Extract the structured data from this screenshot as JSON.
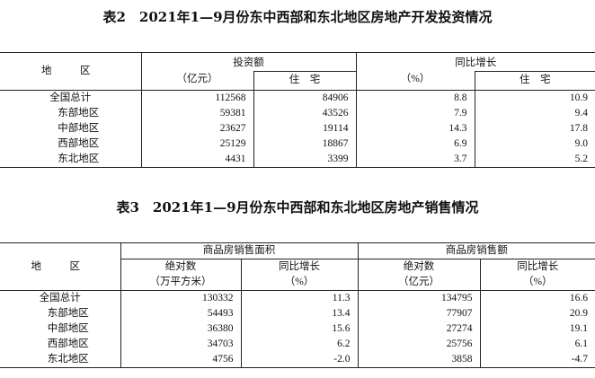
{
  "table2": {
    "title": "表2　2021年1—9月份东中西部和东北地区房地产开发投资情况",
    "header": {
      "region": "地　区",
      "investment": "投资额",
      "investment_unit": "（亿元）",
      "residential": "住　宅",
      "yoy": "同比增长",
      "yoy_unit": "（%）",
      "yoy_residential": "住　宅"
    },
    "rows": [
      {
        "region": "全国总计",
        "inv": "112568",
        "inv_res": "84906",
        "yoy": "8.8",
        "yoy_res": "10.9"
      },
      {
        "region": "东部地区",
        "inv": "59381",
        "inv_res": "43526",
        "yoy": "7.9",
        "yoy_res": "9.4"
      },
      {
        "region": "中部地区",
        "inv": "23627",
        "inv_res": "19114",
        "yoy": "14.3",
        "yoy_res": "17.8"
      },
      {
        "region": "西部地区",
        "inv": "25129",
        "inv_res": "18867",
        "yoy": "6.9",
        "yoy_res": "9.0"
      },
      {
        "region": "东北地区",
        "inv": "4431",
        "inv_res": "3399",
        "yoy": "3.7",
        "yoy_res": "5.2"
      }
    ]
  },
  "table3": {
    "title": "表3　2021年1—9月份东中西部和东北地区房地产销售情况",
    "header": {
      "region": "地　区",
      "area_group": "商品房销售面积",
      "sales_group": "商品房销售额",
      "abs": "绝对数",
      "area_unit": "（万平方米）",
      "yoy": "同比增长",
      "pct_unit": "（%）",
      "abs2": "绝对数",
      "sales_unit": "（亿元）",
      "yoy2": "同比增长",
      "pct_unit2": "（%）"
    },
    "rows": [
      {
        "region": "全国总计",
        "area": "130332",
        "area_yoy": "11.3",
        "sales": "134795",
        "sales_yoy": "16.6"
      },
      {
        "region": "东部地区",
        "area": "54493",
        "area_yoy": "13.4",
        "sales": "77907",
        "sales_yoy": "20.9"
      },
      {
        "region": "中部地区",
        "area": "36380",
        "area_yoy": "15.6",
        "sales": "27274",
        "sales_yoy": "19.1"
      },
      {
        "region": "西部地区",
        "area": "34703",
        "area_yoy": "6.2",
        "sales": "25756",
        "sales_yoy": "6.1"
      },
      {
        "region": "东北地区",
        "area": "4756",
        "area_yoy": "-2.0",
        "sales": "3858",
        "sales_yoy": "-4.7"
      }
    ]
  }
}
